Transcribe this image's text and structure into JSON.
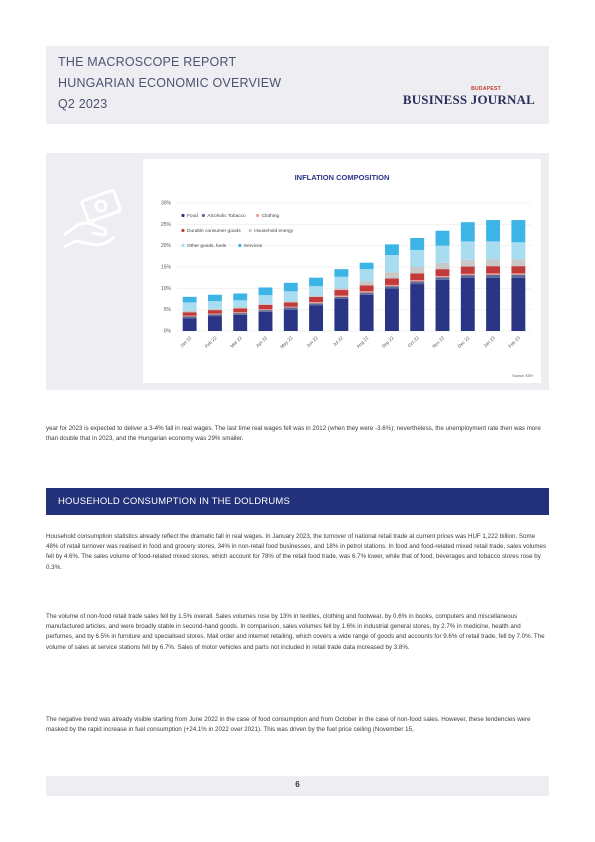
{
  "header": {
    "line1": "THE MACROSCOPE REPORT",
    "line2": "HUNGARIAN ECONOMIC OVERVIEW",
    "line3": "Q2 2023",
    "logo_small": "BUDAPEST",
    "logo_big": "BUSINESS JOURNAL"
  },
  "side_icon": "money-hand-icon",
  "chart_data": {
    "type": "bar",
    "title": "INFLATION COMPOSITION",
    "source": "Source: KSH",
    "categories": [
      "Jan 22",
      "Feb 22",
      "Mar 22",
      "Apr 22",
      "May 22",
      "Jun 22",
      "Jul 22",
      "Aug 22",
      "Sep 22",
      "Oct 22",
      "Nov 22",
      "Dec 22",
      "Jan 23",
      "Feb 23"
    ],
    "yticks": [
      "0%",
      "5%",
      "10%",
      "15%",
      "20%",
      "25%",
      "30%"
    ],
    "ylim": [
      0,
      30
    ],
    "stacked": true,
    "series": [
      {
        "name": "Food",
        "color": "#2b3585",
        "values": [
          3.0,
          3.5,
          3.8,
          4.5,
          5.0,
          6.0,
          7.5,
          8.5,
          10.0,
          11.0,
          12.0,
          12.5,
          12.5,
          12.5
        ]
      },
      {
        "name": "Alcoholic Tobacco",
        "color": "#5a6a9a",
        "values": [
          0.4,
          0.4,
          0.4,
          0.4,
          0.5,
          0.5,
          0.5,
          0.5,
          0.5,
          0.6,
          0.6,
          0.6,
          0.7,
          0.7
        ]
      },
      {
        "name": "Clothing",
        "color": "#f0a090",
        "values": [
          0.2,
          0.2,
          0.2,
          0.2,
          0.2,
          0.3,
          0.3,
          0.3,
          0.3,
          0.3,
          0.3,
          0.3,
          0.3,
          0.3
        ]
      },
      {
        "name": "Durable consumer goods",
        "color": "#c23a3a",
        "values": [
          0.8,
          0.8,
          0.9,
          1.0,
          1.0,
          1.2,
          1.3,
          1.4,
          1.5,
          1.6,
          1.6,
          1.7,
          1.7,
          1.7
        ]
      },
      {
        "name": "Household energy",
        "color": "#c8c8c8",
        "values": [
          0.3,
          0.3,
          0.3,
          0.3,
          0.3,
          0.3,
          0.5,
          1.0,
          1.5,
          1.5,
          1.5,
          1.6,
          1.6,
          1.6
        ]
      },
      {
        "name": "Other goods, fuels",
        "color": "#a8dcf0",
        "values": [
          2.0,
          1.8,
          1.6,
          2.0,
          2.3,
          2.2,
          2.6,
          2.8,
          4.0,
          4.0,
          4.0,
          4.3,
          4.2,
          4.0
        ]
      },
      {
        "name": "Services",
        "color": "#3db4e6",
        "values": [
          1.3,
          1.5,
          1.6,
          1.8,
          2.0,
          2.0,
          1.8,
          1.5,
          2.5,
          2.8,
          3.5,
          4.5,
          5.0,
          5.2
        ]
      }
    ],
    "legend_position": "top-left",
    "grid": true
  },
  "paragraphs": [
    "year for 2023 is expected to deliver a 3-4% fall in real wages. The last time real wages fell was in 2012 (when they were -3.6%); nevertheless, the unemployment rate then was more than double that in 2023, and the Hungarian economy was 29% smaller.",
    "Household consumption statistics already reflect the dramatic fall in real wages. In January 2023, the turnover of national retail trade at current prices was HUF 1,222 billion. Some 48% of retail turnover was realised in food and grocery stores, 34% in non-retail food businesses, and 18% in petrol stations. In food and food-related mixed retail trade, sales volumes fell by 4.6%. The sales volume of food-related mixed stores, which account for 78% of the retail food trade, was 6.7% lower, while that of food, beverages and tobacco stores rose by 0.3%.",
    "The volume of non-food retail trade sales fell by 1.5% overall. Sales volumes rose by 13% in textiles, clothing and footwear, by 0.6% in books, computers and miscellaneous manufactured articles, and were broadly stable in second-hand goods. In comparison, sales volumes fell by 1.6% in industrial general stores, by 2.7% in medicine, health and perfumes, and by 6.5% in furniture and specialised stores. Mail order and internet retailing, which covers a wide range of goods and accounts for 9.6% of retail trade, fell by 7.0%. The volume of sales at service stations fell by 6.7%. Sales of motor vehicles and parts not included in retail trade data increased by 3.8%.",
    "The negative trend was already visible starting from June 2022 in the case of food consumption and from October in the case of non-food sales. However, these tendencies were masked by the rapid increase in fuel consumption (+24.1% in 2022 over 2021). This was driven by the fuel price ceiling (November 15,"
  ],
  "section_title": "HOUSEHOLD CONSUMPTION IN THE DOLDRUMS",
  "page_number": "6"
}
